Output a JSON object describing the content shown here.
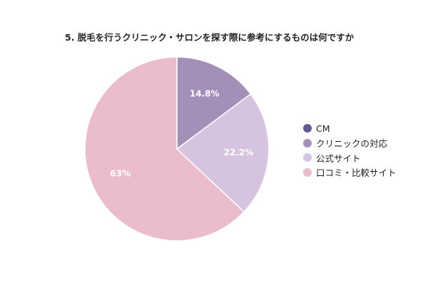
{
  "chart_data": {
    "type": "pie",
    "title": "5. 脱毛を行うクリニック・サロンを探す際に参考にするものは何ですか",
    "categories": [
      "CM",
      "クリニックの対応",
      "公式サイト",
      "口コミ・比較サイト"
    ],
    "values": [
      0,
      14.8,
      22.2,
      63
    ],
    "data_labels": [
      "",
      "14.8%",
      "22.2%",
      "63%"
    ],
    "colors": [
      "#5f5a96",
      "#a38fb8",
      "#d6c3e0",
      "#ebbccb"
    ],
    "legend_position": "right"
  }
}
